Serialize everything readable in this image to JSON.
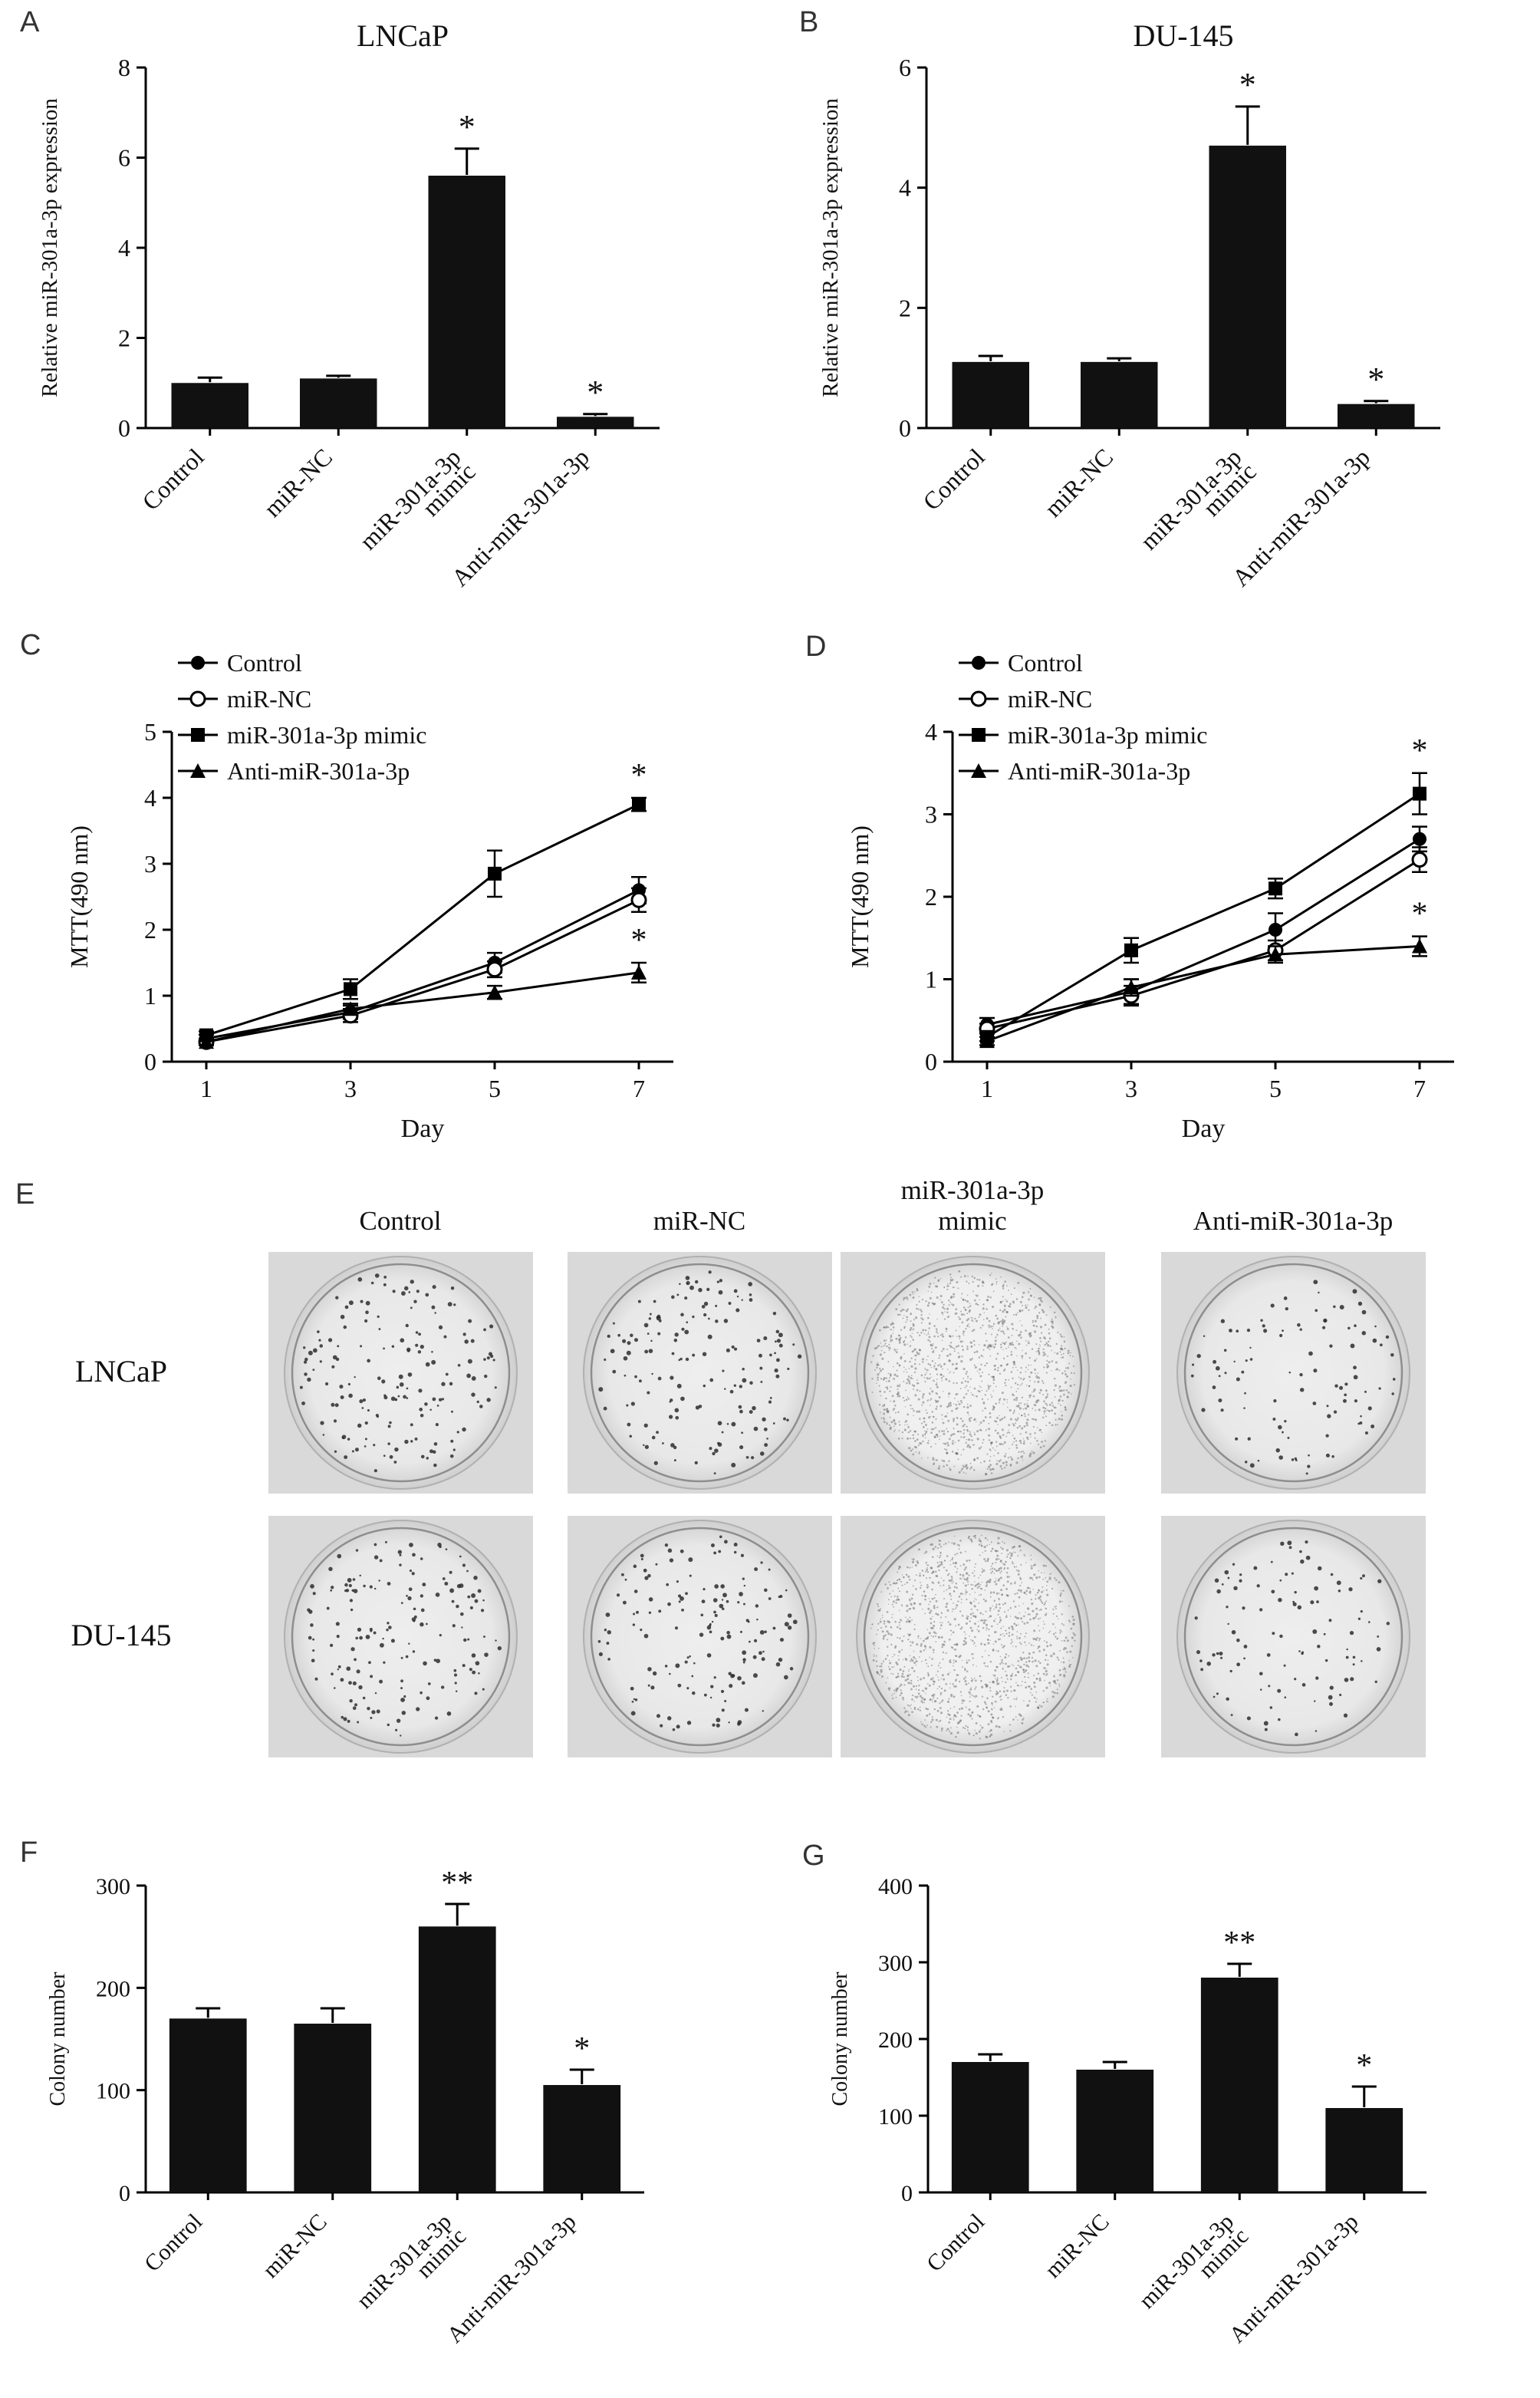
{
  "figure": {
    "background": "#ffffff"
  },
  "panels": {
    "a": {
      "label": "A"
    },
    "b": {
      "label": "B"
    },
    "c": {
      "label": "C"
    },
    "d": {
      "label": "D"
    },
    "e": {
      "label": "E"
    },
    "f": {
      "label": "F"
    },
    "g": {
      "label": "G"
    }
  },
  "chart_data": [
    {
      "id": "A",
      "type": "bar",
      "title": "LNCaP",
      "ylabel": "Relative  miR-301a-3p expression",
      "categories": [
        "Control",
        "miR-NC",
        "miR-301a-3p\nmimic",
        "Anti-miR-301a-3p"
      ],
      "values": [
        1.0,
        1.1,
        5.6,
        0.25
      ],
      "errors": [
        0.12,
        0.06,
        0.6,
        0.06
      ],
      "sig": [
        "",
        "",
        "*",
        "*"
      ],
      "ylim": [
        0,
        8
      ],
      "yticks": [
        0,
        2,
        4,
        6,
        8
      ],
      "bar_color": "#111111"
    },
    {
      "id": "B",
      "type": "bar",
      "title": "DU-145",
      "ylabel": "Relative  miR-301a-3p expression",
      "categories": [
        "Control",
        "miR-NC",
        "miR-301a-3p\nmimic",
        "Anti-miR-301a-3p"
      ],
      "values": [
        1.1,
        1.1,
        4.7,
        0.4
      ],
      "errors": [
        0.1,
        0.06,
        0.65,
        0.05
      ],
      "sig": [
        "",
        "",
        "*",
        "*"
      ],
      "ylim": [
        0,
        6
      ],
      "yticks": [
        0,
        2,
        4,
        6
      ],
      "bar_color": "#111111"
    },
    {
      "id": "C",
      "type": "line",
      "xlabel": "Day",
      "ylabel": "MTT(490 nm)",
      "x": [
        1,
        3,
        5,
        7
      ],
      "ylim": [
        0,
        5
      ],
      "yticks": [
        0,
        1,
        2,
        3,
        4,
        5
      ],
      "legend_position": "top-left",
      "series": [
        {
          "name": "Control",
          "marker": "circle-filled",
          "values": [
            0.35,
            0.75,
            1.5,
            2.6
          ],
          "errors": [
            0.06,
            0.1,
            0.15,
            0.2
          ],
          "sig_last": ""
        },
        {
          "name": "miR-NC",
          "marker": "circle-open",
          "values": [
            0.3,
            0.7,
            1.4,
            2.45
          ],
          "errors": [
            0.05,
            0.1,
            0.12,
            0.18
          ],
          "sig_last": ""
        },
        {
          "name": "miR-301a-3p mimic",
          "marker": "square-filled",
          "values": [
            0.4,
            1.1,
            2.85,
            3.9
          ],
          "errors": [
            0.06,
            0.15,
            0.35,
            0.1
          ],
          "sig_last": "*"
        },
        {
          "name": "Anti-miR-301a-3p",
          "marker": "triangle-filled",
          "values": [
            0.3,
            0.8,
            1.05,
            1.35
          ],
          "errors": [
            0.05,
            0.08,
            0.1,
            0.15
          ],
          "sig_last": "*"
        }
      ]
    },
    {
      "id": "D",
      "type": "line",
      "xlabel": "Day",
      "ylabel": "MTT(490 nm)",
      "x": [
        1,
        3,
        5,
        7
      ],
      "ylim": [
        0,
        4
      ],
      "yticks": [
        0,
        1,
        2,
        3,
        4
      ],
      "legend_position": "top-left",
      "series": [
        {
          "name": "Control",
          "marker": "circle-filled",
          "values": [
            0.45,
            0.85,
            1.6,
            2.7
          ],
          "errors": [
            0.08,
            0.15,
            0.2,
            0.15
          ],
          "sig_last": ""
        },
        {
          "name": "miR-NC",
          "marker": "circle-open",
          "values": [
            0.4,
            0.8,
            1.35,
            2.45
          ],
          "errors": [
            0.06,
            0.12,
            0.12,
            0.15
          ],
          "sig_last": ""
        },
        {
          "name": "miR-301a-3p mimic",
          "marker": "square-filled",
          "values": [
            0.3,
            1.35,
            2.1,
            3.25
          ],
          "errors": [
            0.05,
            0.15,
            0.12,
            0.25
          ],
          "sig_last": "*"
        },
        {
          "name": "Anti-miR-301a-3p",
          "marker": "triangle-filled",
          "values": [
            0.25,
            0.9,
            1.3,
            1.4
          ],
          "errors": [
            0.05,
            0.1,
            0.1,
            0.12
          ],
          "sig_last": "*"
        }
      ]
    },
    {
      "id": "F",
      "type": "bar",
      "title": "",
      "ylabel": "Colony number",
      "categories": [
        "Control",
        "miR-NC",
        "miR-301a-3p\nmimic",
        "Anti-miR-301a-3p"
      ],
      "values": [
        170,
        165,
        260,
        105
      ],
      "errors": [
        10,
        15,
        22,
        15
      ],
      "sig": [
        "",
        "",
        "**",
        "*"
      ],
      "ylim": [
        0,
        300
      ],
      "yticks": [
        0,
        100,
        200,
        300
      ],
      "bar_color": "#111111"
    },
    {
      "id": "G",
      "type": "bar",
      "title": "",
      "ylabel": "Colony number",
      "categories": [
        "Control",
        "miR-NC",
        "miR-301a-3p\nmimic",
        "Anti-miR-301a-3p"
      ],
      "values": [
        170,
        160,
        280,
        110
      ],
      "errors": [
        10,
        10,
        18,
        28
      ],
      "sig": [
        "",
        "",
        "**",
        "*"
      ],
      "ylim": [
        0,
        400
      ],
      "yticks": [
        0,
        100,
        200,
        300,
        400
      ],
      "bar_color": "#111111"
    }
  ],
  "panel_e": {
    "column_headers": [
      "Control",
      "miR-NC",
      "miR-301a-3p\nmimic",
      "Anti-miR-301a-3p"
    ],
    "rows": [
      {
        "label": "LNCaP",
        "dishes": [
          {
            "condition": "Control",
            "density": "sparse",
            "colonies": 170
          },
          {
            "condition": "miR-NC",
            "density": "sparse",
            "colonies": 165
          },
          {
            "condition": "miR-301a-3p mimic",
            "density": "dense-fine",
            "colonies": 260
          },
          {
            "condition": "Anti-miR-301a-3p",
            "density": "sparse",
            "colonies": 105
          }
        ]
      },
      {
        "label": "DU-145",
        "dishes": [
          {
            "condition": "Control",
            "density": "sparse",
            "colonies": 170
          },
          {
            "condition": "miR-NC",
            "density": "sparse",
            "colonies": 160
          },
          {
            "condition": "miR-301a-3p mimic",
            "density": "dense-fine",
            "colonies": 280
          },
          {
            "condition": "Anti-miR-301a-3p",
            "density": "sparse",
            "colonies": 110
          }
        ]
      }
    ]
  }
}
